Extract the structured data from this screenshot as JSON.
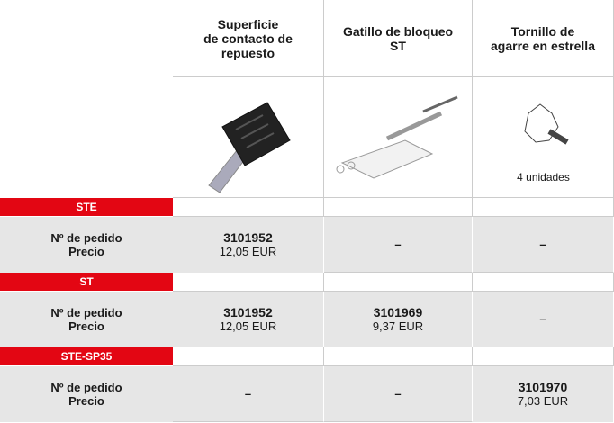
{
  "header": {
    "columns": [
      "Superficie\nde contacto de\nrepuesto",
      "Gatillo de bloqueo\nST",
      "Tornillo de\nagarre en estrella"
    ]
  },
  "images": {
    "caption": "4 unidades"
  },
  "groups": [
    {
      "name": "STE",
      "order_label": "Nº de pedido",
      "price_label": "Precio",
      "cells": [
        {
          "order": "3101952",
          "price": "12,05 EUR"
        },
        {
          "dash": "–"
        },
        {
          "dash": "–"
        }
      ]
    },
    {
      "name": "ST",
      "order_label": "Nº de pedido",
      "price_label": "Precio",
      "cells": [
        {
          "order": "3101952",
          "price": "12,05 EUR"
        },
        {
          "order": "3101969",
          "price": "9,37 EUR"
        },
        {
          "dash": "–"
        }
      ]
    },
    {
      "name": "STE-SP35",
      "order_label": "Nº de pedido",
      "price_label": "Precio",
      "cells": [
        {
          "dash": "–"
        },
        {
          "dash": "–"
        },
        {
          "order": "3101970",
          "price": "7,03 EUR"
        }
      ]
    }
  ]
}
